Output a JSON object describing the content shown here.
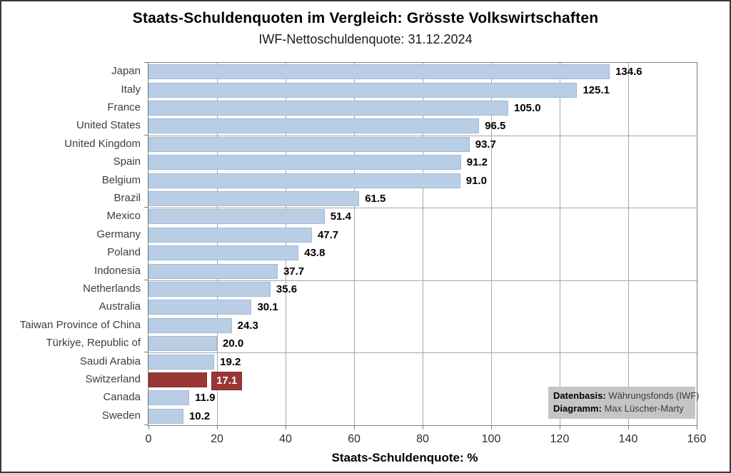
{
  "chart_data": {
    "type": "bar",
    "orientation": "horizontal",
    "title": "Staats-Schuldenquoten im Vergleich: Grösste Volkswirtschaften",
    "subtitle": "IWF-Nettoschuldenquote:  31.12.2024",
    "xlabel": "Staats-Schuldenquote:  %",
    "xlim": [
      0,
      160
    ],
    "xticks": [
      0,
      20,
      40,
      60,
      80,
      100,
      120,
      140,
      160
    ],
    "grid": {
      "vertical_step": 20,
      "horizontal_group_rows": [
        4,
        8,
        12,
        16
      ],
      "category_tick_rows": [
        0,
        4,
        8,
        12,
        16,
        20
      ]
    },
    "legend_position": "bottom-right",
    "categories": [
      "Japan",
      "Italy",
      "France",
      "United States",
      "United Kingdom",
      "Spain",
      "Belgium",
      "Brazil",
      "Mexico",
      "Germany",
      "Poland",
      "Indonesia",
      "Netherlands",
      "Australia",
      "Taiwan Province of China",
      "Türkiye, Republic of",
      "Saudi Arabia",
      "Switzerland",
      "Canada",
      "Sweden"
    ],
    "values": [
      134.6,
      125.1,
      105.0,
      96.5,
      93.7,
      91.2,
      91.0,
      61.5,
      51.4,
      47.7,
      43.8,
      37.7,
      35.6,
      30.1,
      24.3,
      20.0,
      19.2,
      17.1,
      11.9,
      10.2
    ],
    "value_labels": [
      "134.6",
      "125.1",
      "105.0",
      "96.5",
      "93.7",
      "91.2",
      "91.0",
      "61.5",
      "51.4",
      "47.7",
      "43.8",
      "37.7",
      "35.6",
      "30.1",
      "24.3",
      "20.0",
      "19.2",
      "17.1",
      "11.9",
      "10.2"
    ],
    "highlight_category": "Switzerland",
    "colors": {
      "bar": "#b9cde5",
      "bar_border": "#a3b9d6",
      "highlight": "#9a3734",
      "highlight_border": "#7e2d2a",
      "highlight_label_bg": "#9a3734",
      "highlight_label_text": "#ffffff",
      "grid": "#a6a6a6",
      "axis": "#808080"
    }
  },
  "source_box": {
    "datenbasis_label": "Datenbasis:",
    "datenbasis_value": "Währungsfonds (IWF)",
    "diagramm_label": "Diagramm:",
    "diagramm_value": "Max Lüscher-Marty"
  }
}
